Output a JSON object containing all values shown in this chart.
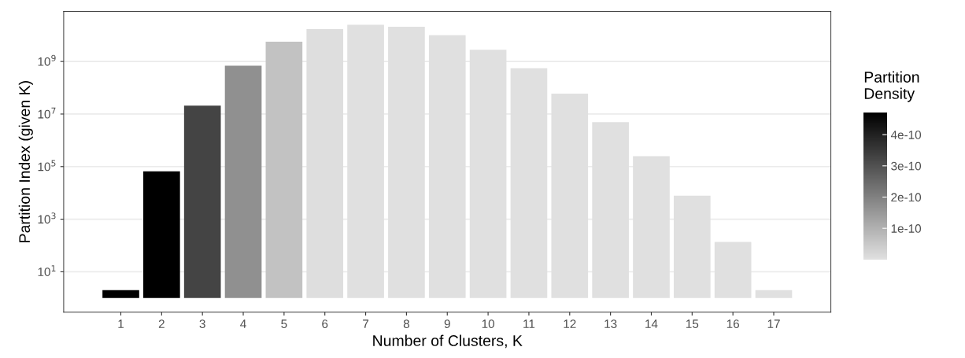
{
  "chart_data": {
    "type": "bar",
    "xlabel": "Number of Clusters, K",
    "ylabel": "Partition Index (given K)",
    "clabel": "Partition\nDensity",
    "categories": [
      "1",
      "2",
      "3",
      "4",
      "5",
      "6",
      "7",
      "8",
      "9",
      "10",
      "11",
      "12",
      "13",
      "14",
      "15",
      "16",
      "17"
    ],
    "values": [
      1,
      66000,
      21000000,
      690000000,
      5700000000,
      17000000000,
      25000000000,
      21000000000,
      10000000000,
      2800000000,
      550000000,
      60000000,
      4900000,
      250000,
      7800,
      136,
      1
    ],
    "base": [
      1,
      1,
      1,
      1,
      1,
      1,
      1,
      1,
      1,
      1,
      1,
      1,
      1,
      1,
      1,
      1,
      1
    ],
    "colors": [
      "#000000",
      "#000000",
      "#444444",
      "#909090",
      "#c2c2c2",
      "#dedede",
      "#e0e0e0",
      "#e0e0e0",
      "#e0e0e0",
      "#e0e0e0",
      "#e0e0e0",
      "#e0e0e0",
      "#e0e0e0",
      "#e0e0e0",
      "#e0e0e0",
      "#e0e0e0",
      "#e0e0e0"
    ],
    "log": "y",
    "ylim": [
      0.29,
      80000000000
    ],
    "yticks": [
      {
        "value": 10,
        "label": "10$^{1}$"
      },
      {
        "value": 1000,
        "label": "10$^{3}$"
      },
      {
        "value": 100000,
        "label": "10$^{5}$"
      },
      {
        "value": 10000000,
        "label": "10$^{7}$"
      },
      {
        "value": 1000000000,
        "label": "10$^{9}$"
      }
    ],
    "clim": [
      0,
      4.7e-10
    ],
    "cticks": [
      {
        "value": 1e-10,
        "label": "1e-10"
      },
      {
        "value": 2e-10,
        "label": "2e-10"
      },
      {
        "value": 3e-10,
        "label": "3e-10"
      },
      {
        "value": 4e-10,
        "label": "4e-10"
      }
    ],
    "grid": "y"
  }
}
